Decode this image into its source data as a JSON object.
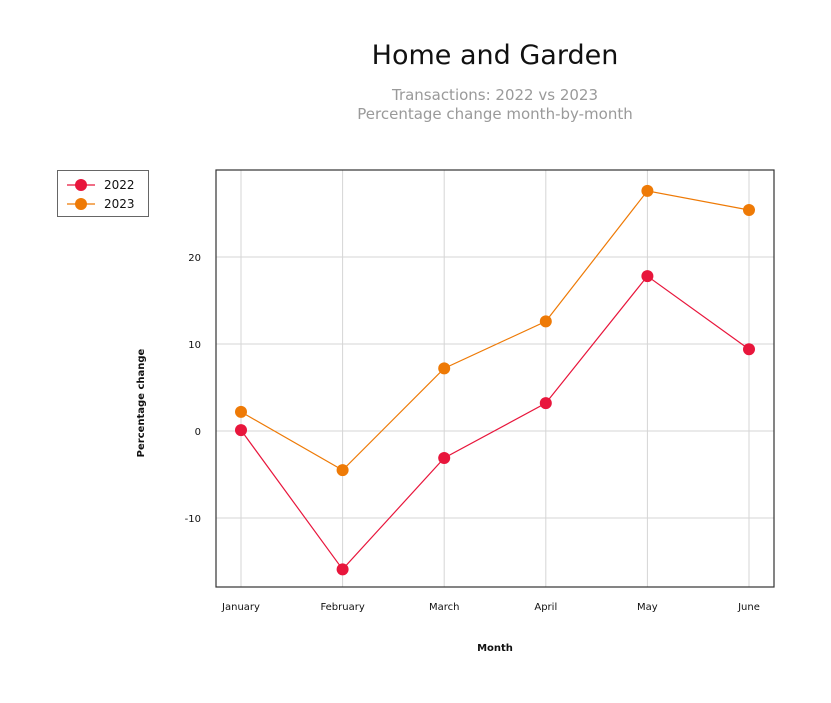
{
  "colors": {
    "series_2022": "#e8163c",
    "series_2023": "#ee7a06",
    "grid": "#d5d5d5",
    "frame": "#333333"
  },
  "chart_data": {
    "type": "line",
    "title": "Home and Garden",
    "subtitle": [
      "Transactions: 2022 vs 2023",
      "Percentage change month-by-month"
    ],
    "xlabel": "Month",
    "ylabel": "Percentage change",
    "categories": [
      "January",
      "February",
      "March",
      "April",
      "May",
      "June"
    ],
    "ylim": [
      -18,
      30
    ],
    "yticks": [
      -10,
      0,
      10,
      20
    ],
    "ytick_labels": [
      "-10",
      "0",
      "10",
      "20"
    ],
    "grid": true,
    "legend_position": "top-left, outside plot",
    "series": [
      {
        "name": "2022",
        "color": "#e8163c",
        "values": [
          0.1,
          -15.9,
          -3.1,
          3.2,
          17.8,
          9.4
        ]
      },
      {
        "name": "2023",
        "color": "#ee7a06",
        "values": [
          2.2,
          -4.5,
          7.2,
          12.6,
          27.6,
          25.4
        ]
      }
    ]
  }
}
